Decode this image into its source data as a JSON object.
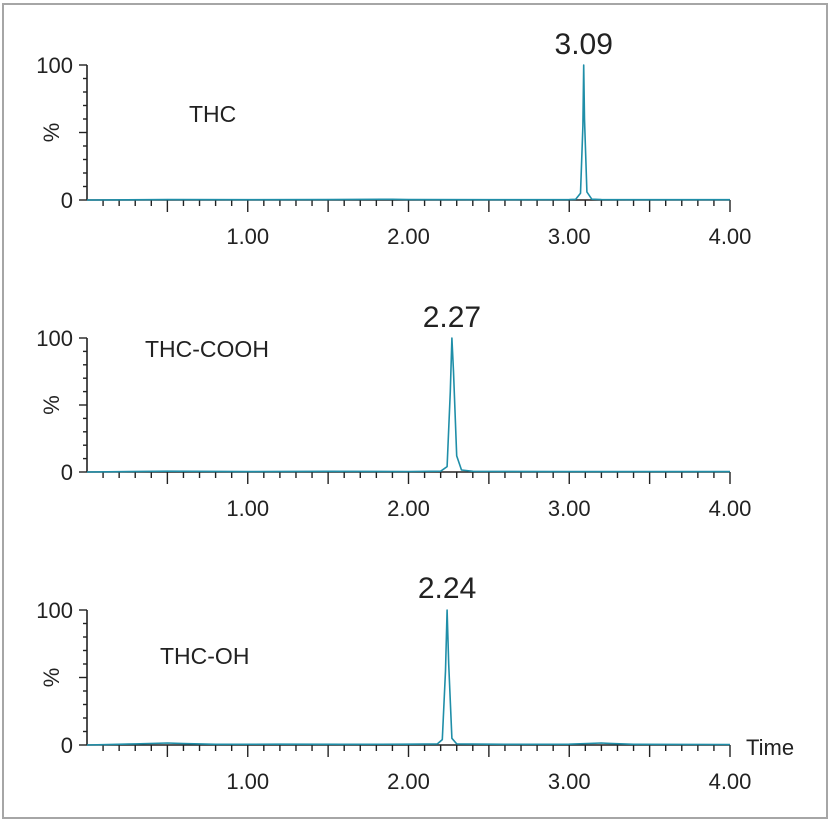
{
  "chart_data": [
    {
      "type": "line",
      "compound": "THC",
      "peak_label": "3.09",
      "xlabel": "",
      "ylabel": "%",
      "xlim": [
        0,
        4.0
      ],
      "ylim": [
        0,
        100
      ],
      "x_ticks": [
        "1.00",
        "2.00",
        "3.00",
        "4.00"
      ],
      "y_ticks": [
        "0",
        "100"
      ],
      "grid": false,
      "color": "#1f8ea8",
      "series": [
        {
          "x": [
            0.0,
            0.5,
            1.0,
            1.5,
            1.9,
            2.0,
            2.5,
            3.0,
            3.04,
            3.07,
            3.085,
            3.09,
            3.095,
            3.11,
            3.14,
            3.2,
            3.5,
            4.0
          ],
          "y": [
            0,
            0.3,
            0.2,
            0.3,
            0.5,
            0.3,
            0.2,
            0.3,
            0.5,
            5,
            55,
            100,
            60,
            6,
            0.6,
            0.3,
            0.2,
            0.2
          ]
        }
      ]
    },
    {
      "type": "line",
      "compound": "THC-COOH",
      "peak_label": "2.27",
      "xlabel": "",
      "ylabel": "%",
      "xlim": [
        0,
        4.0
      ],
      "ylim": [
        0,
        100
      ],
      "x_ticks": [
        "1.00",
        "2.00",
        "3.00",
        "4.00"
      ],
      "y_ticks": [
        "0",
        "100"
      ],
      "grid": false,
      "color": "#1f8ea8",
      "series": [
        {
          "x": [
            0.0,
            0.5,
            1.0,
            1.5,
            2.0,
            2.2,
            2.24,
            2.26,
            2.27,
            2.28,
            2.3,
            2.33,
            2.4,
            3.0,
            3.5,
            4.0
          ],
          "y": [
            0,
            0.6,
            0.3,
            0.5,
            0.4,
            0.6,
            4,
            60,
            100,
            75,
            12,
            1.5,
            0.5,
            0.3,
            0.3,
            0.3
          ]
        }
      ]
    },
    {
      "type": "line",
      "compound": "THC-OH",
      "peak_label": "2.24",
      "xlabel": "Time",
      "ylabel": "%",
      "xlim": [
        0,
        4.0
      ],
      "ylim": [
        0,
        100
      ],
      "x_ticks": [
        "1.00",
        "2.00",
        "3.00",
        "4.00"
      ],
      "y_ticks": [
        "0",
        "100"
      ],
      "grid": false,
      "color": "#1f8ea8",
      "series": [
        {
          "x": [
            0.0,
            0.3,
            0.5,
            0.6,
            0.8,
            1.2,
            1.6,
            2.0,
            2.18,
            2.21,
            2.23,
            2.24,
            2.25,
            2.27,
            2.3,
            2.6,
            3.0,
            3.2,
            3.25,
            3.4,
            4.0
          ],
          "y": [
            0,
            0.8,
            1.5,
            1.0,
            0.5,
            0.6,
            0.5,
            0.6,
            0.8,
            4,
            55,
            100,
            60,
            5,
            0.8,
            0.5,
            0.6,
            1.5,
            1.2,
            0.5,
            0.4
          ]
        }
      ]
    }
  ]
}
